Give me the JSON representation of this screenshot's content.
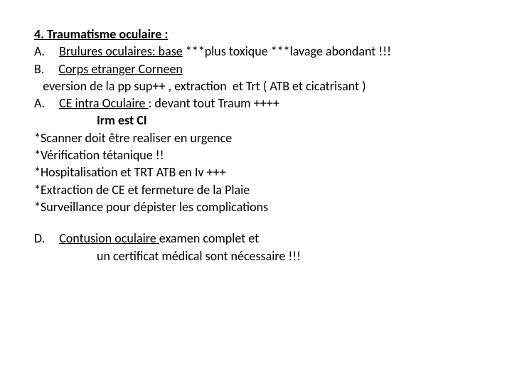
{
  "title": {
    "text": "4. Traumatisme oculaire :"
  },
  "itemA1": {
    "label": "A.",
    "uline": "Brulures oculaires: base",
    "rest": " ***plus toxique ***lavage abondant !!!"
  },
  "itemB": {
    "label": "B.",
    "uline": "Corps etranger Corneen"
  },
  "subB": {
    "text": "   eversion de la pp sup++ , extraction  et Trt ( ATB et cicatrisant )"
  },
  "itemA2": {
    "label": "A.",
    "uline": "CE intra Oculaire ",
    "rest": ": devant tout Traum ++++"
  },
  "irm": {
    "text": "Irm est CI"
  },
  "s1": {
    "text": "*Scanner doit être realiser en urgence"
  },
  "s2": {
    "text": "*Vérification tétanique !!"
  },
  "s3": {
    "text": "*Hospitalisation et TRT  ATB en Iv +++"
  },
  "s4": {
    "text": "*Extraction de CE et fermeture de la Plaie"
  },
  "s5": {
    "text": "*Surveillance pour dépister les complications"
  },
  "itemD": {
    "label": "D.",
    "uline": "Contusion oculaire ",
    "rest": "examen complet et"
  },
  "subD": {
    "text": "un certificat médical sont nécessaire !!!"
  }
}
